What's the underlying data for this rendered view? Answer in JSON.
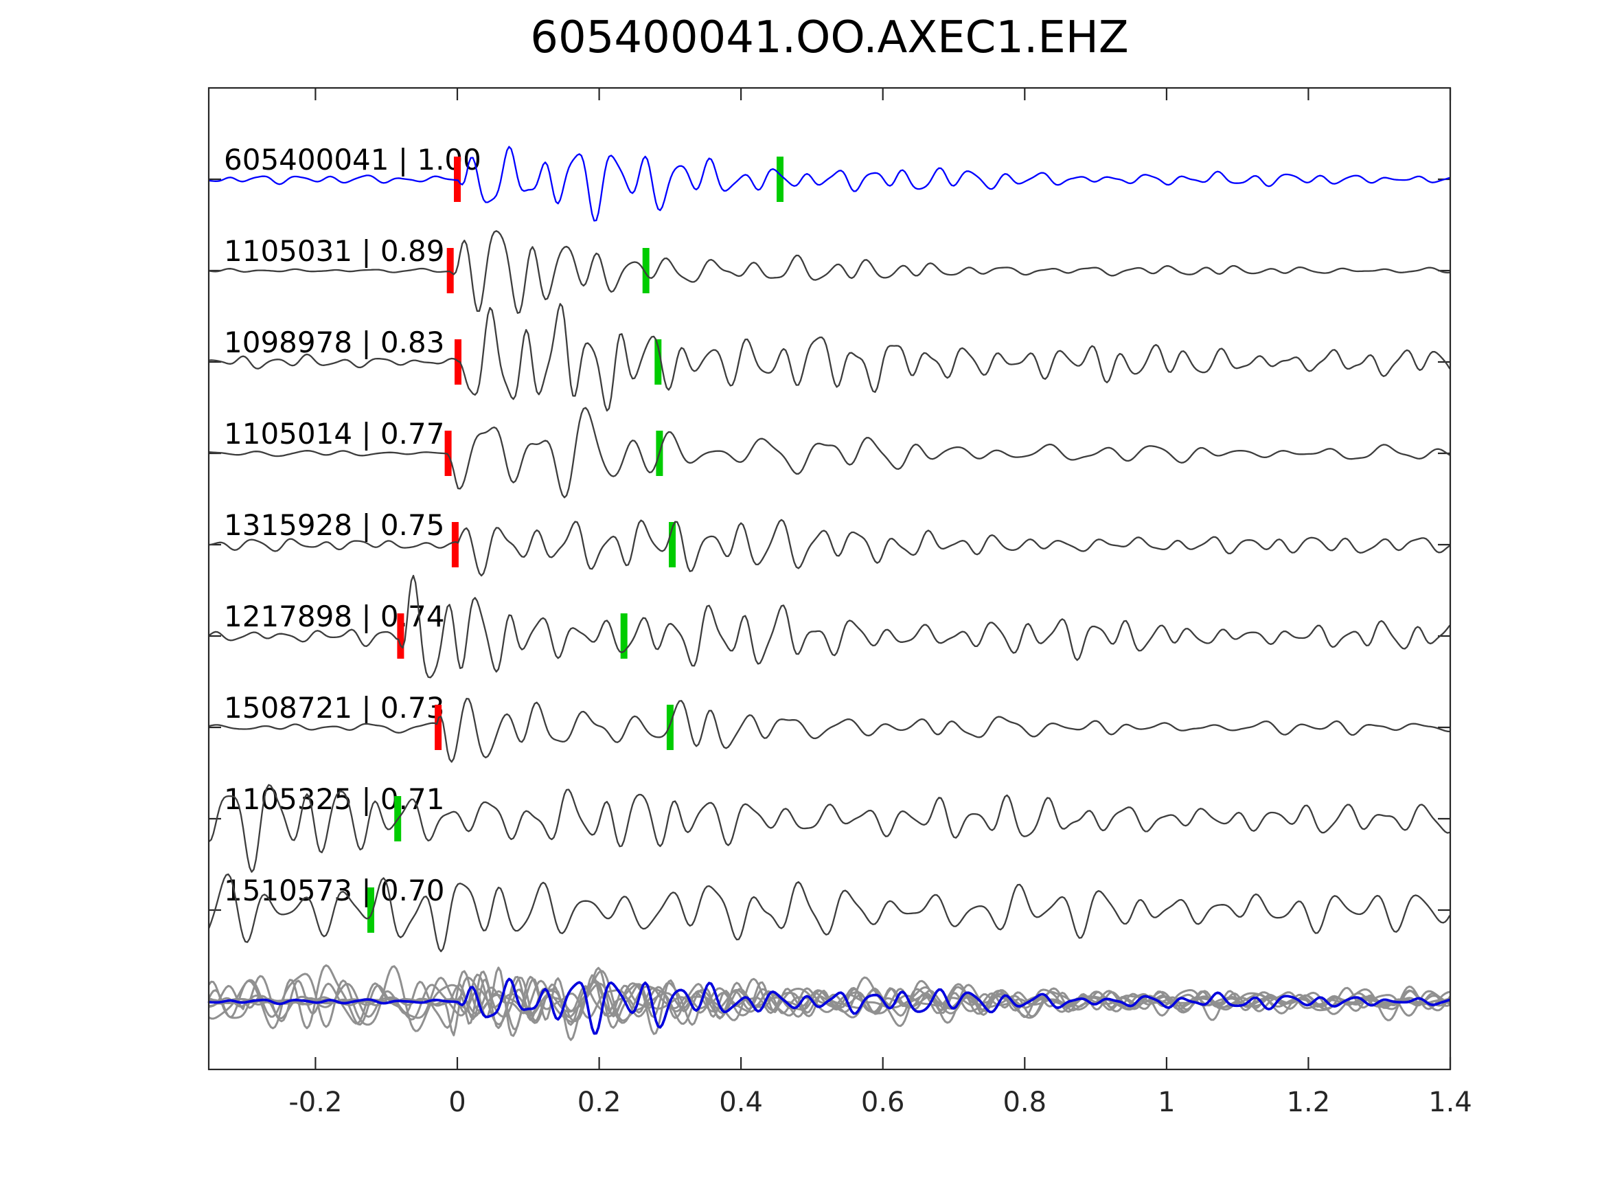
{
  "title": "605400041.OO.AXEC1.EHZ",
  "chart_data": {
    "type": "line",
    "title": "605400041.OO.AXEC1.EHZ",
    "xlabel": "",
    "ylabel": "",
    "grid": false,
    "legend": "none",
    "x_axis": {
      "xlim": [
        -0.35,
        1.4
      ],
      "ticks": [
        -0.2,
        0,
        0.2,
        0.4,
        0.6,
        0.8,
        1,
        1.2,
        1.4
      ],
      "tick_labels": [
        "-0.2",
        "0",
        "0.2",
        "0.4",
        "0.6",
        "0.8",
        "1",
        "1.2",
        "1.4"
      ]
    },
    "colors": {
      "reference_trace": "#0000ff",
      "member_trace": "#3d3d3d",
      "stack_member": "#909090",
      "stack_overlay": "#0000dd",
      "pick_red": "#ff0000",
      "pick_green": "#00cc00",
      "axis": "#262626",
      "label_text": "#000000"
    },
    "traces": [
      {
        "id": "605400041",
        "correlation": "1.00",
        "label": "605400041 | 1.00",
        "color": "reference",
        "red_pick": 0.0,
        "green_pick": 0.455,
        "synth": {
          "seed": 11,
          "pre": 6,
          "onset": 0.0,
          "main": 80,
          "decay": 3.2,
          "freq": 21,
          "tail": 7
        }
      },
      {
        "id": "1105031",
        "correlation": "0.89",
        "label": "1105031 | 0.89",
        "color": "member",
        "red_pick": -0.01,
        "green_pick": 0.266,
        "synth": {
          "seed": 22,
          "pre": 3,
          "onset": -0.01,
          "main": 82,
          "decay": 3.6,
          "freq": 19,
          "tail": 5
        }
      },
      {
        "id": "1098978",
        "correlation": "0.83",
        "label": "1098978 | 0.83",
        "color": "member",
        "red_pick": 0.001,
        "green_pick": 0.283,
        "synth": {
          "seed": 33,
          "pre": 9,
          "onset": 0.0,
          "main": 78,
          "decay": 2.0,
          "freq": 21,
          "tail": 14
        }
      },
      {
        "id": "1105014",
        "correlation": "0.77",
        "label": "1105014 | 0.77",
        "color": "member",
        "red_pick": -0.013,
        "green_pick": 0.285,
        "synth": {
          "seed": 44,
          "pre": 4,
          "onset": -0.015,
          "main": 82,
          "decay": 2.8,
          "freq": 15,
          "tail": 8
        }
      },
      {
        "id": "1315928",
        "correlation": "0.75",
        "label": "1315928 | 0.75",
        "color": "member",
        "red_pick": -0.003,
        "green_pick": 0.303,
        "synth": {
          "seed": 55,
          "pre": 8,
          "onset": 0.0,
          "main": 72,
          "decay": 2.6,
          "freq": 20,
          "tail": 9
        }
      },
      {
        "id": "1217898",
        "correlation": "0.74",
        "label": "1217898 | 0.74",
        "color": "member",
        "red_pick": -0.08,
        "green_pick": 0.235,
        "synth": {
          "seed": 66,
          "pre": 13,
          "onset": -0.085,
          "main": 60,
          "decay": 1.6,
          "freq": 21,
          "tail": 12
        }
      },
      {
        "id": "1508721",
        "correlation": "0.73",
        "label": "1508721 | 0.73",
        "color": "member",
        "red_pick": -0.027,
        "green_pick": 0.3,
        "synth": {
          "seed": 77,
          "pre": 6,
          "onset": -0.03,
          "main": 72,
          "decay": 2.8,
          "freq": 17,
          "tail": 7
        }
      },
      {
        "id": "1105325",
        "correlation": "0.71",
        "label": "1105325 | 0.71",
        "color": "member",
        "red_pick": null,
        "green_pick": -0.084,
        "synth": {
          "seed": 88,
          "pre": 0,
          "onset": -0.5,
          "main": 60,
          "decay": 0.9,
          "freq": 19,
          "tail": 10
        }
      },
      {
        "id": "1510573",
        "correlation": "0.70",
        "label": "1510573 | 0.70",
        "color": "member",
        "red_pick": null,
        "green_pick": -0.122,
        "synth": {
          "seed": 99,
          "pre": 0,
          "onset": -0.5,
          "main": 55,
          "decay": 0.7,
          "freq": 17,
          "tail": 12
        }
      }
    ],
    "stack": {
      "gray_members": [
        {
          "seed": 101,
          "pre": 6,
          "onset": 0.0,
          "main": 55,
          "decay": 2.5,
          "freq": 20,
          "tail": 8
        },
        {
          "seed": 102,
          "pre": 40,
          "onset": -0.5,
          "main": 48,
          "decay": 0.8,
          "freq": 16,
          "tail": 8
        },
        {
          "seed": 103,
          "pre": 5,
          "onset": -0.01,
          "main": 50,
          "decay": 2.2,
          "freq": 21,
          "tail": 7
        },
        {
          "seed": 104,
          "pre": 35,
          "onset": -0.5,
          "main": 45,
          "decay": 0.7,
          "freq": 14,
          "tail": 8
        },
        {
          "seed": 105,
          "pre": 8,
          "onset": 0.0,
          "main": 52,
          "decay": 2.0,
          "freq": 19,
          "tail": 9
        },
        {
          "seed": 106,
          "pre": 25,
          "onset": -0.3,
          "main": 50,
          "decay": 1.5,
          "freq": 18,
          "tail": 8
        },
        {
          "seed": 107,
          "pre": 5,
          "onset": -0.02,
          "main": 50,
          "decay": 2.6,
          "freq": 22,
          "tail": 6
        },
        {
          "seed": 108,
          "pre": 30,
          "onset": -0.5,
          "main": 44,
          "decay": 0.9,
          "freq": 15,
          "tail": 9
        }
      ],
      "blue_overlay": {
        "seed": 11,
        "pre": 3,
        "onset": 0.0,
        "main": 50,
        "decay": 2.2,
        "freq": 21,
        "tail": 6
      }
    }
  }
}
